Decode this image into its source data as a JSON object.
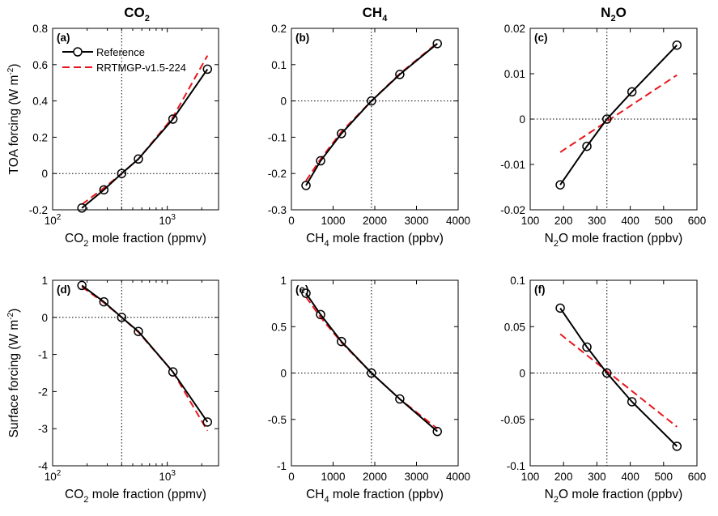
{
  "column_titles": [
    {
      "main": "CO",
      "sub": "2",
      "tail": ""
    },
    {
      "main": "CH",
      "sub": "4",
      "tail": ""
    },
    {
      "main": "N",
      "sub": "2",
      "tail": "O"
    }
  ],
  "colors": {
    "reference": "#000000",
    "rrtmgp": "#e8161c",
    "zero_line": "#000000"
  },
  "legend": {
    "reference": "Reference",
    "rrtmgp": "RRTMGP-v1.5-224"
  },
  "chart_data": [
    {
      "id": "a",
      "panel_label": "(a)",
      "type": "line",
      "xscale": "log",
      "xlabel": {
        "pre": "CO",
        "sub": "2",
        "post": " mole fraction (ppmv)"
      },
      "ylabel": {
        "pre": "TOA forcing (W m",
        "sup": "-2",
        "post": ")"
      },
      "xlim": [
        100,
        2800
      ],
      "ylim": [
        -0.2,
        0.8
      ],
      "xticks": [
        {
          "v": 100,
          "base": "10",
          "exp": "2"
        },
        {
          "v": 1000,
          "base": "10",
          "exp": "3"
        }
      ],
      "yticks": [
        {
          "v": -0.2,
          "t": "-0.2"
        },
        {
          "v": 0,
          "t": "0"
        },
        {
          "v": 0.2,
          "t": "0.2"
        },
        {
          "v": 0.4,
          "t": "0.4"
        },
        {
          "v": 0.6,
          "t": "0.6"
        },
        {
          "v": 0.8,
          "t": "0.8"
        }
      ],
      "vline": 400,
      "show_legend": true,
      "series": [
        {
          "name": "Reference",
          "style": "solid-circle",
          "x": [
            180,
            280,
            400,
            560,
            1120,
            2240
          ],
          "y": [
            -0.19,
            -0.09,
            0.0,
            0.08,
            0.3,
            0.575
          ]
        },
        {
          "name": "RRTMGP-v1.5-224",
          "style": "dashed",
          "x": [
            180,
            280,
            400,
            560,
            1120,
            2240
          ],
          "y": [
            -0.17,
            -0.08,
            0.0,
            0.08,
            0.31,
            0.65
          ]
        }
      ]
    },
    {
      "id": "b",
      "panel_label": "(b)",
      "type": "line",
      "xscale": "linear",
      "xlabel": {
        "pre": "CH",
        "sub": "4",
        "post": " mole fraction (ppbv)"
      },
      "ylabel": {
        "pre": "",
        "sup": "",
        "post": ""
      },
      "xlim": [
        0,
        4000
      ],
      "ylim": [
        -0.3,
        0.2
      ],
      "xticks": [
        {
          "v": 0,
          "t": "0"
        },
        {
          "v": 1000,
          "t": "1000"
        },
        {
          "v": 2000,
          "t": "2000"
        },
        {
          "v": 3000,
          "t": "3000"
        },
        {
          "v": 4000,
          "t": "4000"
        }
      ],
      "yticks": [
        {
          "v": -0.3,
          "t": "-0.3"
        },
        {
          "v": -0.2,
          "t": "-0.2"
        },
        {
          "v": -0.1,
          "t": "-0.1"
        },
        {
          "v": 0,
          "t": "0"
        },
        {
          "v": 0.1,
          "t": "0.1"
        },
        {
          "v": 0.2,
          "t": "0.2"
        }
      ],
      "vline": 1920,
      "show_legend": false,
      "series": [
        {
          "name": "Reference",
          "style": "solid-circle",
          "x": [
            350,
            700,
            1200,
            1920,
            2600,
            3500
          ],
          "y": [
            -0.233,
            -0.165,
            -0.09,
            0.0,
            0.073,
            0.158
          ]
        },
        {
          "name": "RRTMGP-v1.5-224",
          "style": "dashed",
          "x": [
            350,
            700,
            1200,
            1920,
            2600,
            3500
          ],
          "y": [
            -0.22,
            -0.16,
            -0.085,
            0.0,
            0.075,
            0.16
          ]
        }
      ]
    },
    {
      "id": "c",
      "panel_label": "(c)",
      "type": "line",
      "xscale": "linear",
      "xlabel": {
        "pre": "N",
        "sub": "2",
        "post": "O mole fraction (ppbv)"
      },
      "ylabel": {
        "pre": "",
        "sup": "",
        "post": ""
      },
      "xlim": [
        100,
        600
      ],
      "ylim": [
        -0.02,
        0.02
      ],
      "xticks": [
        {
          "v": 100,
          "t": "100"
        },
        {
          "v": 200,
          "t": "200"
        },
        {
          "v": 300,
          "t": "300"
        },
        {
          "v": 400,
          "t": "400"
        },
        {
          "v": 500,
          "t": "500"
        },
        {
          "v": 600,
          "t": "600"
        }
      ],
      "yticks": [
        {
          "v": -0.02,
          "t": "-0.02"
        },
        {
          "v": -0.01,
          "t": "-0.01"
        },
        {
          "v": 0,
          "t": "0"
        },
        {
          "v": 0.01,
          "t": "0.01"
        },
        {
          "v": 0.02,
          "t": "0.02"
        }
      ],
      "vline": 330,
      "show_legend": false,
      "series": [
        {
          "name": "Reference",
          "style": "solid-circle",
          "x": [
            190,
            270,
            330,
            405,
            540
          ],
          "y": [
            -0.0145,
            -0.006,
            0.0,
            0.006,
            0.0163
          ]
        },
        {
          "name": "RRTMGP-v1.5-224",
          "style": "dashed",
          "x": [
            190,
            540
          ],
          "y": [
            -0.0073,
            0.0097
          ]
        }
      ]
    },
    {
      "id": "d",
      "panel_label": "(d)",
      "type": "line",
      "xscale": "log",
      "xlabel": {
        "pre": "CO",
        "sub": "2",
        "post": " mole fraction (ppmv)"
      },
      "ylabel": {
        "pre": "Surface forcing (W m",
        "sup": "-2",
        "post": ")"
      },
      "xlim": [
        100,
        2800
      ],
      "ylim": [
        -4,
        1
      ],
      "xticks": [
        {
          "v": 100,
          "base": "10",
          "exp": "2"
        },
        {
          "v": 1000,
          "base": "10",
          "exp": "3"
        }
      ],
      "yticks": [
        {
          "v": -4,
          "t": "-4"
        },
        {
          "v": -3,
          "t": "-3"
        },
        {
          "v": -2,
          "t": "-2"
        },
        {
          "v": -1,
          "t": "-1"
        },
        {
          "v": 0,
          "t": "0"
        },
        {
          "v": 1,
          "t": "1"
        }
      ],
      "vline": 400,
      "show_legend": false,
      "series": [
        {
          "name": "Reference",
          "style": "solid-circle",
          "x": [
            180,
            280,
            400,
            560,
            1120,
            2240
          ],
          "y": [
            0.86,
            0.42,
            0.0,
            -0.38,
            -1.47,
            -2.82
          ]
        },
        {
          "name": "RRTMGP-v1.5-224",
          "style": "dashed",
          "x": [
            180,
            280,
            400,
            560,
            1120,
            2240
          ],
          "y": [
            0.82,
            0.4,
            0.0,
            -0.4,
            -1.47,
            -3.06
          ]
        }
      ]
    },
    {
      "id": "e",
      "panel_label": "(e)",
      "type": "line",
      "xscale": "linear",
      "xlabel": {
        "pre": "CH",
        "sub": "4",
        "post": " mole fraction (ppbv)"
      },
      "ylabel": {
        "pre": "",
        "sup": "",
        "post": ""
      },
      "xlim": [
        0,
        4000
      ],
      "ylim": [
        -1,
        1
      ],
      "xticks": [
        {
          "v": 0,
          "t": "0"
        },
        {
          "v": 1000,
          "t": "1000"
        },
        {
          "v": 2000,
          "t": "2000"
        },
        {
          "v": 3000,
          "t": "3000"
        },
        {
          "v": 4000,
          "t": "4000"
        }
      ],
      "yticks": [
        {
          "v": -1,
          "t": "-1"
        },
        {
          "v": -0.5,
          "t": "-0.5"
        },
        {
          "v": 0,
          "t": "0"
        },
        {
          "v": 0.5,
          "t": "0.5"
        },
        {
          "v": 1,
          "t": "1"
        }
      ],
      "vline": 1920,
      "show_legend": false,
      "series": [
        {
          "name": "Reference",
          "style": "solid-circle",
          "x": [
            350,
            700,
            1200,
            1920,
            2600,
            3500
          ],
          "y": [
            0.86,
            0.63,
            0.34,
            0.0,
            -0.28,
            -0.63
          ]
        },
        {
          "name": "RRTMGP-v1.5-224",
          "style": "dashed",
          "x": [
            350,
            700,
            1200,
            1920,
            2600,
            3500
          ],
          "y": [
            0.82,
            0.6,
            0.33,
            0.0,
            -0.28,
            -0.6
          ]
        }
      ]
    },
    {
      "id": "f",
      "panel_label": "(f)",
      "type": "line",
      "xscale": "linear",
      "xlabel": {
        "pre": "N",
        "sub": "2",
        "post": "O mole fraction (ppbv)"
      },
      "ylabel": {
        "pre": "",
        "sup": "",
        "post": ""
      },
      "xlim": [
        100,
        600
      ],
      "ylim": [
        -0.1,
        0.1
      ],
      "xticks": [
        {
          "v": 100,
          "t": "100"
        },
        {
          "v": 200,
          "t": "200"
        },
        {
          "v": 300,
          "t": "300"
        },
        {
          "v": 400,
          "t": "400"
        },
        {
          "v": 500,
          "t": "500"
        },
        {
          "v": 600,
          "t": "600"
        }
      ],
      "yticks": [
        {
          "v": -0.1,
          "t": "-0.1"
        },
        {
          "v": -0.05,
          "t": "-0.05"
        },
        {
          "v": 0,
          "t": "0"
        },
        {
          "v": 0.05,
          "t": "0.05"
        },
        {
          "v": 0.1,
          "t": "0.1"
        }
      ],
      "vline": 330,
      "show_legend": false,
      "series": [
        {
          "name": "Reference",
          "style": "solid-circle",
          "x": [
            190,
            270,
            330,
            405,
            540
          ],
          "y": [
            0.07,
            0.028,
            0.0,
            -0.031,
            -0.079
          ]
        },
        {
          "name": "RRTMGP-v1.5-224",
          "style": "dashed",
          "x": [
            190,
            540
          ],
          "y": [
            0.042,
            -0.058
          ]
        }
      ]
    }
  ]
}
